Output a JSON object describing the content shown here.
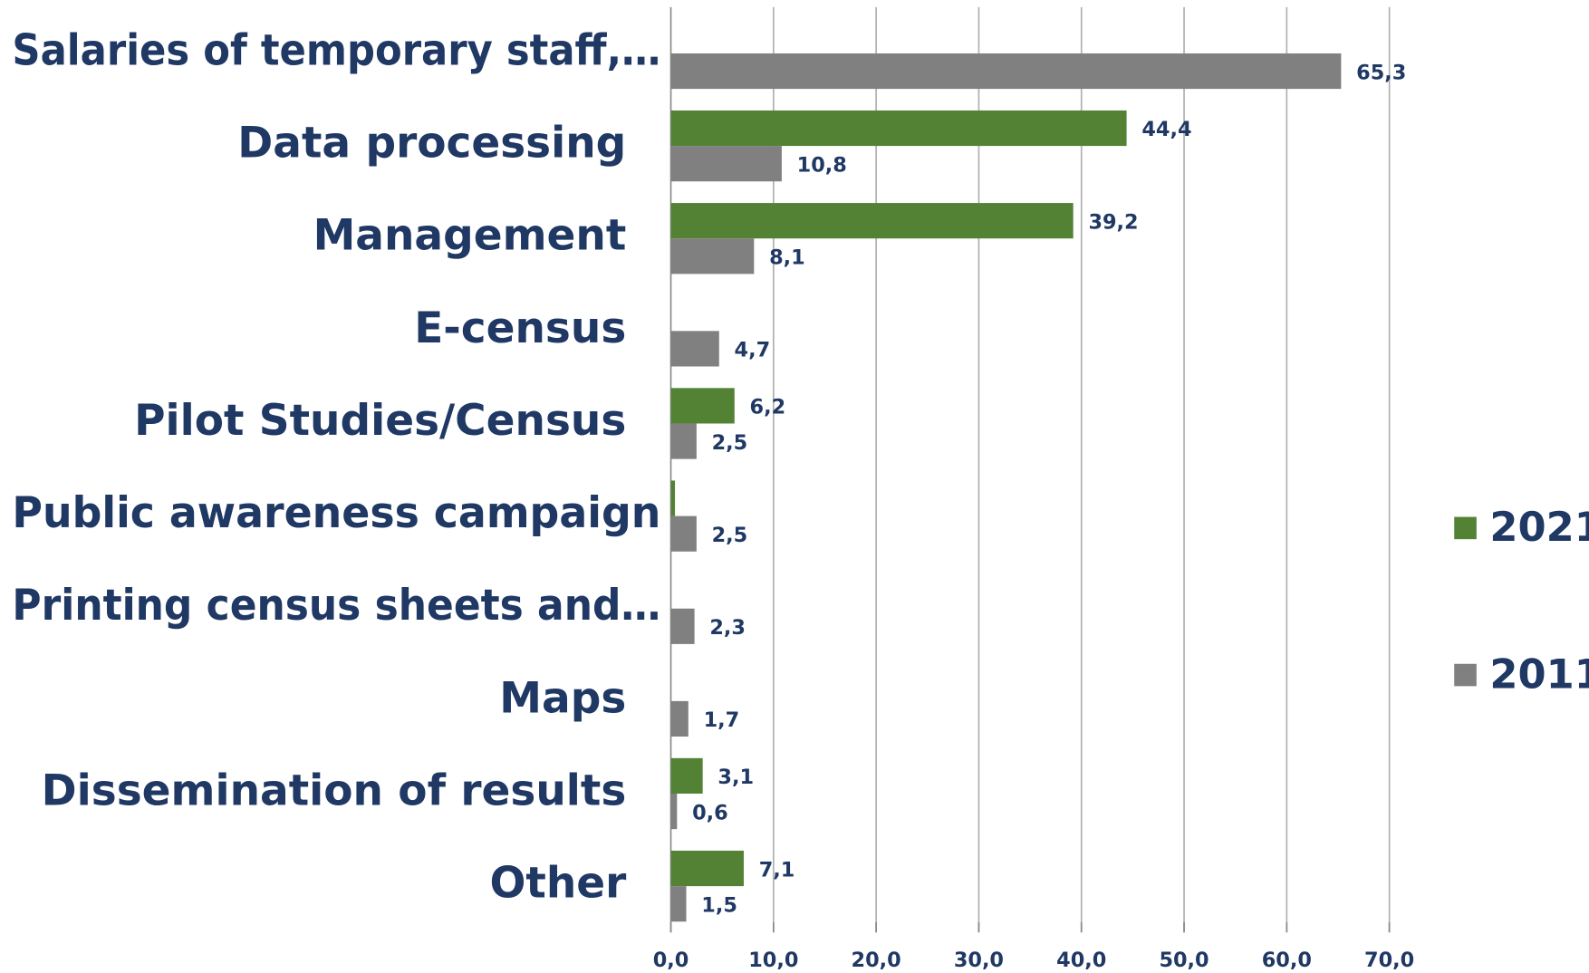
{
  "chart_data": {
    "type": "barh",
    "categories": [
      "Salaries of temporary staff,…",
      "Data processing",
      "Management",
      "E-census",
      "Pilot Studies/Census",
      "Public awareness campaign",
      "Printing census sheets and…",
      "Maps",
      "Dissemination of results",
      "Other"
    ],
    "series": [
      {
        "name": "2021",
        "color": "#548235",
        "values": [
          null,
          44.4,
          39.2,
          null,
          6.2,
          0.4,
          null,
          null,
          3.1,
          7.1
        ],
        "value_labels": [
          null,
          "44,4",
          "39,2",
          null,
          "6,2",
          null,
          null,
          null,
          "3,1",
          "7,1"
        ]
      },
      {
        "name": "2011",
        "color": "#808080",
        "values": [
          65.3,
          10.8,
          8.1,
          4.7,
          2.5,
          2.5,
          2.3,
          1.7,
          0.6,
          1.5
        ],
        "value_labels": [
          "65,3",
          "10,8",
          "8,1",
          "4,7",
          "2,5",
          "2,5",
          "2,3",
          "1,7",
          "0,6",
          "1,5"
        ]
      }
    ],
    "xlim": [
      0,
      70
    ],
    "xticks": [
      {
        "value": 0,
        "label": "0,0"
      },
      {
        "value": 10,
        "label": "10,0"
      },
      {
        "value": 20,
        "label": "20,0"
      },
      {
        "value": 30,
        "label": "30,0"
      },
      {
        "value": 40,
        "label": "40,0"
      },
      {
        "value": 50,
        "label": "50,0"
      },
      {
        "value": 60,
        "label": "60,0"
      },
      {
        "value": 70,
        "label": "70,0"
      }
    ],
    "grid": true,
    "legend": "right"
  }
}
